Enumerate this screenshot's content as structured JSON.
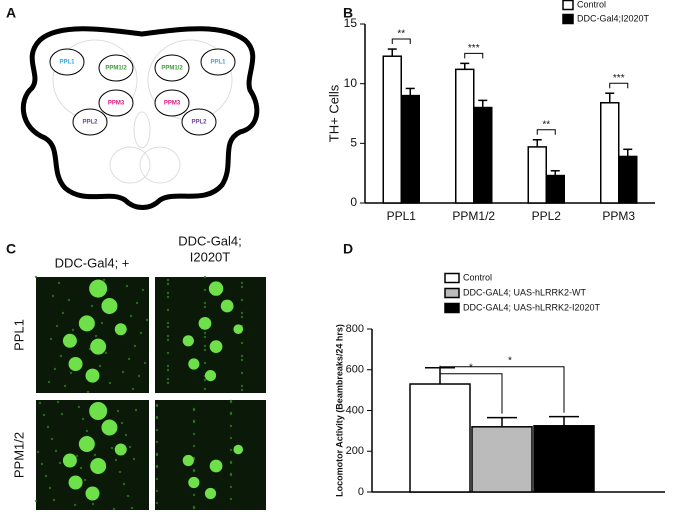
{
  "panels": {
    "a": "A",
    "b": "B",
    "c": "C",
    "d": "D"
  },
  "diagram": {
    "labels": [
      {
        "text": "PPL1",
        "color": "#2aa6df"
      },
      {
        "text": "PPM1/2",
        "color": "#3f9b3a"
      },
      {
        "text": "PPM1/2",
        "color": "#3f9b3a"
      },
      {
        "text": "PPL1",
        "color": "#2aa6df"
      },
      {
        "text": "PPM3",
        "color": "#e0187f"
      },
      {
        "text": "PPM3",
        "color": "#e0187f"
      },
      {
        "text": "PPL2",
        "color": "#6b3f9c"
      },
      {
        "text": "PPL2",
        "color": "#6b3f9c"
      }
    ]
  },
  "images": {
    "columns": [
      [
        "DDC-Gal4; +"
      ],
      [
        "DDC-Gal4;",
        "I2020T"
      ]
    ],
    "rows": [
      "PPL1",
      "PPM1/2"
    ]
  },
  "chart_data": [
    {
      "type": "bar",
      "ylabel": "TH+ Cells",
      "categories": [
        "PPL1",
        "PPM1/2",
        "PPL2",
        "PPM3"
      ],
      "series": [
        {
          "name": "Control",
          "color": "#ffffff",
          "values": [
            12.3,
            11.2,
            4.7,
            8.4
          ],
          "errors": [
            0.6,
            0.5,
            0.6,
            0.8
          ]
        },
        {
          "name": "DDC-Gal4;I2020T",
          "color": "#000000",
          "values": [
            9.0,
            8.0,
            2.3,
            3.9
          ],
          "errors": [
            0.6,
            0.6,
            0.4,
            0.6
          ]
        }
      ],
      "significance": [
        "**",
        "***",
        "**",
        "***"
      ],
      "ylim": [
        0,
        15
      ],
      "yticks": [
        0,
        5,
        10,
        15
      ]
    },
    {
      "type": "bar",
      "ylabel": "Locomotor Activity (Beambreaks/24 hrs)",
      "categories": [
        null
      ],
      "series": [
        {
          "name": "Control",
          "color": "#ffffff",
          "values": [
            530
          ],
          "errors": [
            80
          ]
        },
        {
          "name": "DDC-GAL4; UAS-hLRRK2-WT",
          "color": "#bbbbbb",
          "values": [
            320
          ],
          "errors": [
            45
          ]
        },
        {
          "name": "DDC-GAL4; UAS-hLRRK2-I2020T",
          "color": "#000000",
          "values": [
            325
          ],
          "errors": [
            45
          ]
        }
      ],
      "significance": [
        "*",
        "*"
      ],
      "ylim": [
        0,
        800
      ],
      "yticks": [
        0,
        200,
        400,
        600,
        800
      ]
    }
  ]
}
